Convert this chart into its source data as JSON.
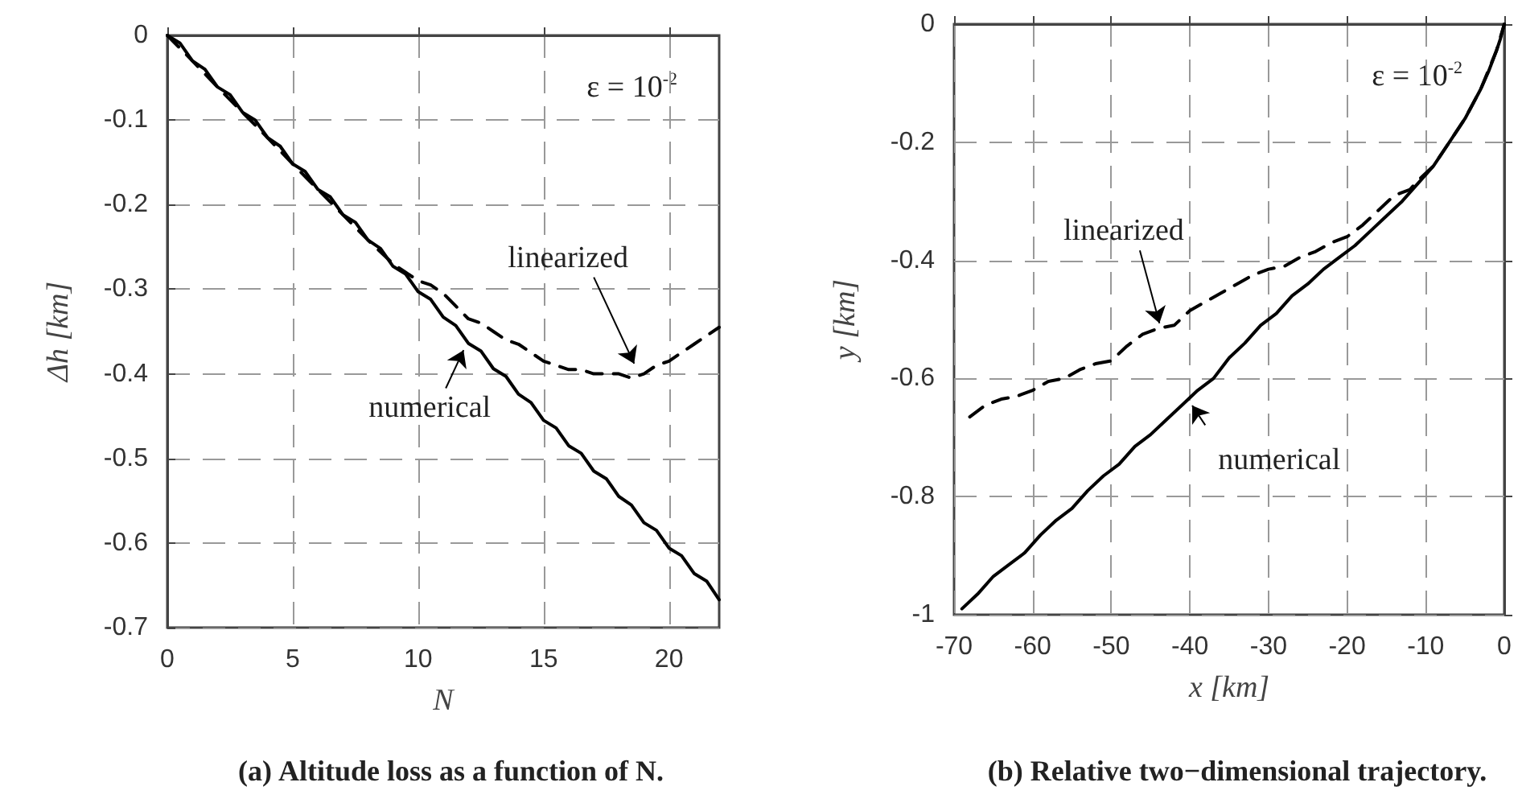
{
  "chart_data": [
    {
      "type": "line",
      "title": "(a) Altitude loss as a function of N.",
      "xlabel": "N",
      "ylabel": "Δh [km]",
      "xlim": [
        0,
        22
      ],
      "xticks": [
        0,
        5,
        10,
        15,
        20
      ],
      "ylim": [
        -0.7,
        0
      ],
      "yticks": [
        -0.7,
        -0.6,
        -0.5,
        -0.4,
        -0.3,
        -0.2,
        -0.1,
        0
      ],
      "grid": true,
      "marker": "none",
      "annotations": [
        "ε = 10$^{-2}$",
        {
          "text": "linearized",
          "x": 18.8,
          "y": -0.4
        },
        {
          "text": "numerical",
          "x": 12,
          "y": -0.36
        }
      ],
      "series": [
        {
          "color": "#000000",
          "line_style": "solid",
          "x": [
            0,
            0.5,
            1,
            1.5,
            2,
            2.5,
            3,
            3.5,
            4,
            4.5,
            5,
            5.5,
            6,
            6.5,
            7,
            7.5,
            8,
            8.5,
            9,
            9.5,
            10,
            10.5,
            11,
            11.5,
            12,
            12.5,
            13,
            13.5,
            14,
            14.5,
            15,
            15.5,
            16,
            16.5,
            17,
            17.5,
            18,
            18.5,
            19,
            19.5,
            20,
            20.5,
            21,
            21.5,
            22
          ],
          "values": [
            0,
            -0.009,
            -0.03,
            -0.04,
            -0.061,
            -0.07,
            -0.091,
            -0.1,
            -0.121,
            -0.131,
            -0.152,
            -0.161,
            -0.182,
            -0.191,
            -0.212,
            -0.221,
            -0.242,
            -0.252,
            -0.273,
            -0.282,
            -0.303,
            -0.312,
            -0.333,
            -0.343,
            -0.364,
            -0.373,
            -0.394,
            -0.403,
            -0.424,
            -0.434,
            -0.455,
            -0.464,
            -0.485,
            -0.494,
            -0.515,
            -0.524,
            -0.545,
            -0.555,
            -0.576,
            -0.585,
            -0.606,
            -0.615,
            -0.636,
            -0.645,
            -0.667
          ]
        },
        {
          "color": "#000000",
          "line_style": "dashed",
          "x": [
            0,
            1,
            2,
            3,
            4,
            5,
            6,
            7,
            8,
            9,
            9.5,
            10,
            10.5,
            11,
            11.5,
            12,
            12.5,
            13,
            13.5,
            14,
            14.5,
            15,
            15.5,
            16,
            16.5,
            17,
            17.5,
            18,
            18.5,
            19,
            19.5,
            20,
            20.5,
            21,
            21.5,
            22
          ],
          "values": [
            0,
            -0.03,
            -0.061,
            -0.091,
            -0.121,
            -0.152,
            -0.182,
            -0.212,
            -0.242,
            -0.27,
            -0.28,
            -0.29,
            -0.295,
            -0.305,
            -0.32,
            -0.335,
            -0.34,
            -0.35,
            -0.36,
            -0.365,
            -0.375,
            -0.385,
            -0.39,
            -0.395,
            -0.395,
            -0.4,
            -0.4,
            -0.4,
            -0.405,
            -0.4,
            -0.39,
            -0.385,
            -0.375,
            -0.365,
            -0.355,
            -0.345
          ]
        }
      ]
    },
    {
      "type": "line",
      "title": "(b) Relative two−dimensional trajectory.",
      "xlabel": "x [km]",
      "ylabel": "y [km]",
      "xlim": [
        -70,
        0
      ],
      "xticks": [
        -70,
        -60,
        -50,
        -40,
        -30,
        -20,
        -10,
        0
      ],
      "ylim": [
        -1,
        0
      ],
      "yticks": [
        -1,
        -0.8,
        -0.6,
        -0.4,
        -0.2,
        0
      ],
      "grid": true,
      "marker": "none",
      "annotations": [
        "ε = 10$^{-2}$",
        {
          "text": "linearized",
          "x": -43.5,
          "y": -0.525
        },
        {
          "text": "numerical",
          "x": -40.5,
          "y": -0.63
        }
      ],
      "series": [
        {
          "color": "#000000",
          "line_style": "solid",
          "x": [
            -69,
            -67,
            -65,
            -63,
            -61,
            -59,
            -57,
            -55,
            -53,
            -51,
            -49,
            -47,
            -45,
            -43,
            -41,
            -39,
            -37,
            -35,
            -33,
            -31,
            -29,
            -27,
            -25,
            -23,
            -21,
            -19,
            -17,
            -15,
            -13,
            -11,
            -9,
            -7,
            -5,
            -3,
            -2,
            -1,
            -0.5,
            0
          ],
          "values": [
            -0.99,
            -0.965,
            -0.935,
            -0.915,
            -0.895,
            -0.865,
            -0.84,
            -0.82,
            -0.79,
            -0.765,
            -0.745,
            -0.715,
            -0.695,
            -0.67,
            -0.645,
            -0.62,
            -0.6,
            -0.565,
            -0.54,
            -0.51,
            -0.49,
            -0.46,
            -0.44,
            -0.415,
            -0.395,
            -0.375,
            -0.35,
            -0.325,
            -0.3,
            -0.27,
            -0.24,
            -0.2,
            -0.16,
            -0.11,
            -0.08,
            -0.045,
            -0.025,
            0
          ]
        },
        {
          "color": "#000000",
          "line_style": "dashed",
          "x": [
            -68,
            -66,
            -64,
            -62,
            -60,
            -58,
            -56,
            -54,
            -52,
            -50,
            -48,
            -46,
            -44,
            -42,
            -40,
            -38,
            -36,
            -34,
            -32,
            -30,
            -28,
            -26,
            -24,
            -22,
            -20,
            -18,
            -16,
            -14,
            -12,
            -11,
            -9,
            -7,
            -5,
            -3,
            -1,
            0
          ],
          "values": [
            -0.665,
            -0.645,
            -0.635,
            -0.63,
            -0.62,
            -0.605,
            -0.6,
            -0.585,
            -0.575,
            -0.57,
            -0.545,
            -0.525,
            -0.515,
            -0.51,
            -0.485,
            -0.47,
            -0.455,
            -0.44,
            -0.425,
            -0.415,
            -0.41,
            -0.395,
            -0.385,
            -0.37,
            -0.36,
            -0.34,
            -0.315,
            -0.29,
            -0.28,
            -0.265,
            -0.24,
            -0.2,
            -0.16,
            -0.11,
            -0.045,
            0
          ]
        }
      ]
    }
  ]
}
